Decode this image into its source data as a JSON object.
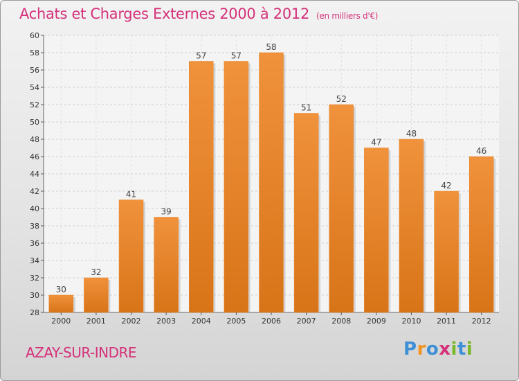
{
  "title": "Achats et Charges Externes 2000 à 2012",
  "unit": "(en milliers d'€)",
  "location": "AZAY-SUR-INDRE",
  "logo": {
    "letters": [
      "P",
      "r",
      "o",
      "x",
      "i",
      "t",
      "i"
    ],
    "colors": [
      "#3d8fd6",
      "#f39221",
      "#3d8fd6",
      "#d5317a",
      "#7ab829",
      "#3d8fd6",
      "#7ab829"
    ]
  },
  "colors": {
    "bar": "#f0923c",
    "bar_dark": "#d87418",
    "title": "#d5317a"
  },
  "chart_data": {
    "type": "bar",
    "title": "Achats et Charges Externes 2000 à 2012",
    "unit": "(en milliers d'€)",
    "categories": [
      "2000",
      "2001",
      "2002",
      "2003",
      "2004",
      "2005",
      "2006",
      "2007",
      "2008",
      "2009",
      "2010",
      "2011",
      "2012"
    ],
    "values": [
      30,
      32,
      41,
      39,
      57,
      57,
      58,
      51,
      52,
      47,
      48,
      42,
      46
    ],
    "ylim": [
      28,
      60
    ],
    "yticks": [
      28,
      30,
      32,
      34,
      36,
      38,
      40,
      42,
      44,
      46,
      48,
      50,
      52,
      54,
      56,
      58,
      60
    ],
    "grid": true,
    "legend": false
  }
}
